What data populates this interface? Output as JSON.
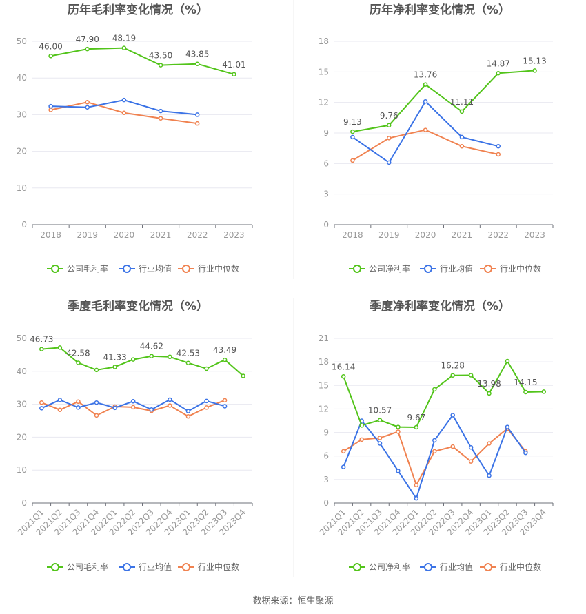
{
  "source_text": "数据来源：恒生聚源",
  "legend_labels": {
    "gross": [
      "公司毛利率",
      "行业均值",
      "行业中位数"
    ],
    "net": [
      "公司净利率",
      "行业均值",
      "行业中位数"
    ]
  },
  "colors": {
    "company": "#52c41a",
    "mean": "#3b73e6",
    "median": "#f08250"
  },
  "chart_data": [
    {
      "type": "line",
      "title": "历年毛利率变化情况（%）",
      "categories": [
        "2018",
        "2019",
        "2020",
        "2021",
        "2022",
        "2023"
      ],
      "ylim": [
        0,
        50
      ],
      "yticks": [
        0,
        10,
        20,
        30,
        40,
        50
      ],
      "grid": true,
      "legend_position": "bottom",
      "series": [
        {
          "name": "公司毛利率",
          "values": [
            46.0,
            47.9,
            48.19,
            43.5,
            43.85,
            41.01
          ],
          "labels": [
            "46.00",
            "47.90",
            "48.19",
            "43.50",
            "43.85",
            "41.01"
          ]
        },
        {
          "name": "行业均值",
          "values": [
            32.3,
            32.0,
            34.0,
            31.0,
            30.0,
            null
          ]
        },
        {
          "name": "行业中位数",
          "values": [
            31.3,
            33.4,
            30.5,
            29.0,
            27.6,
            null
          ]
        }
      ]
    },
    {
      "type": "line",
      "title": "历年净利率变化情况（%）",
      "categories": [
        "2018",
        "2019",
        "2020",
        "2021",
        "2022",
        "2023"
      ],
      "ylim": [
        0,
        18
      ],
      "yticks": [
        0,
        3,
        6,
        9,
        12,
        15,
        18
      ],
      "grid": true,
      "legend_position": "bottom",
      "series": [
        {
          "name": "公司净利率",
          "values": [
            9.13,
            9.76,
            13.76,
            11.11,
            14.87,
            15.13
          ],
          "labels": [
            "9.13",
            "9.76",
            "13.76",
            "11.11",
            "14.87",
            "15.13"
          ]
        },
        {
          "name": "行业均值",
          "values": [
            8.6,
            6.1,
            12.1,
            8.6,
            7.7,
            null
          ]
        },
        {
          "name": "行业中位数",
          "values": [
            6.3,
            8.5,
            9.3,
            7.7,
            6.9,
            null
          ]
        }
      ]
    },
    {
      "type": "line",
      "title": "季度毛利率变化情况（%）",
      "categories": [
        "2021Q1",
        "2021Q2",
        "2021Q3",
        "2021Q4",
        "2022Q1",
        "2022Q2",
        "2022Q3",
        "2022Q4",
        "2023Q1",
        "2023Q2",
        "2023Q3",
        "2023Q4"
      ],
      "ylim": [
        0,
        50
      ],
      "yticks": [
        0,
        10,
        20,
        30,
        40,
        50
      ],
      "grid": true,
      "legend_position": "bottom",
      "series": [
        {
          "name": "公司毛利率",
          "values": [
            46.73,
            47.2,
            42.58,
            40.4,
            41.33,
            43.6,
            44.62,
            44.4,
            42.53,
            40.8,
            43.49,
            38.6
          ],
          "labels": [
            "46.73",
            null,
            "42.58",
            null,
            "41.33",
            null,
            "44.62",
            null,
            "42.53",
            null,
            "43.49",
            null
          ]
        },
        {
          "name": "行业均值",
          "values": [
            28.8,
            31.3,
            29.0,
            30.5,
            28.9,
            30.9,
            28.4,
            31.4,
            27.9,
            31.0,
            29.4,
            null
          ]
        },
        {
          "name": "行业中位数",
          "values": [
            30.5,
            28.3,
            30.8,
            26.6,
            29.3,
            29.1,
            28.0,
            29.6,
            26.3,
            29.0,
            31.2,
            null
          ]
        }
      ]
    },
    {
      "type": "line",
      "title": "季度净利率变化情况（%）",
      "categories": [
        "2021Q1",
        "2021Q2",
        "2021Q3",
        "2021Q4",
        "2022Q1",
        "2022Q2",
        "2022Q3",
        "2022Q4",
        "2023Q1",
        "2023Q2",
        "2023Q3",
        "2023Q4"
      ],
      "ylim": [
        0,
        21
      ],
      "yticks": [
        0,
        3,
        6,
        9,
        12,
        15,
        18,
        21
      ],
      "grid": true,
      "legend_position": "bottom",
      "series": [
        {
          "name": "公司净利率",
          "values": [
            16.14,
            9.9,
            10.57,
            9.7,
            9.67,
            14.5,
            16.28,
            16.3,
            13.98,
            18.1,
            14.15,
            14.2
          ],
          "labels": [
            "16.14",
            null,
            "10.57",
            null,
            "9.67",
            null,
            "16.28",
            null,
            "13.98",
            null,
            "14.15",
            null
          ]
        },
        {
          "name": "行业均值",
          "values": [
            4.6,
            10.5,
            7.6,
            4.1,
            0.6,
            8.0,
            11.2,
            7.1,
            3.5,
            9.7,
            6.4,
            null
          ]
        },
        {
          "name": "行业中位数",
          "values": [
            6.6,
            8.1,
            8.3,
            9.1,
            2.3,
            6.6,
            7.2,
            5.3,
            7.6,
            9.5,
            6.6,
            null
          ]
        }
      ]
    }
  ]
}
